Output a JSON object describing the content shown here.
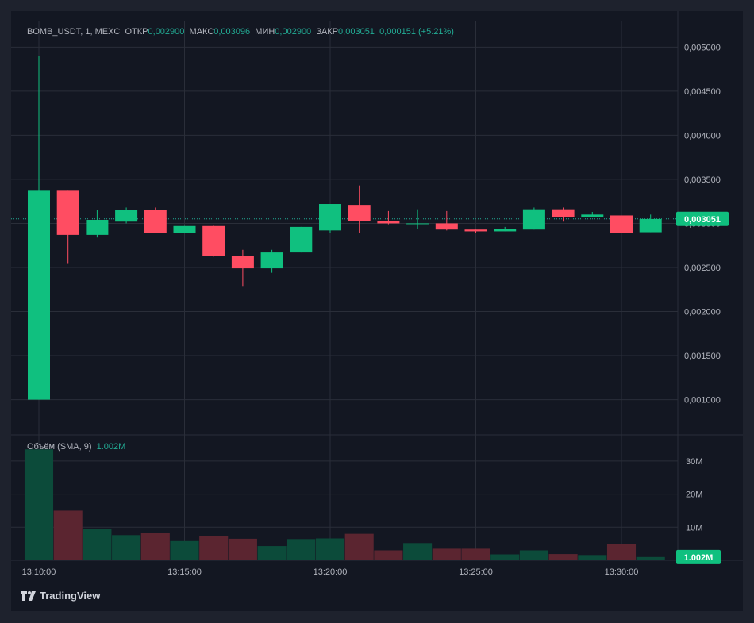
{
  "header": {
    "symbol": "BOMB_USDT, 1, MEXC",
    "open_label": "ОТКР",
    "open_value": "0,002900",
    "high_label": "МАКС",
    "high_value": "0,003096",
    "low_label": "МИН",
    "low_value": "0,002900",
    "close_label": "ЗАКР",
    "close_value": "0,003051",
    "change": "0,000151 (+5.21%)"
  },
  "volume_legend": {
    "label": "Объём (SMA, 9)",
    "value": "1.002M"
  },
  "brand": "TradingView",
  "colors": {
    "up": "#22ab94",
    "down": "#f7525f",
    "up_bright": "#10c07f",
    "down_bright": "#ff4d62",
    "vol_up": "#0c4b3a",
    "vol_down": "#5b2530",
    "background": "#131722",
    "grid": "#2a2e39"
  },
  "chart_data": {
    "type": "candlestick",
    "price_axis": {
      "ticks": [
        "0,005000",
        "0,004500",
        "0,004000",
        "0,003500",
        "0,003000",
        "0,002500",
        "0,002000",
        "0,001500",
        "0,001000"
      ],
      "tick_values": [
        0.005,
        0.0045,
        0.004,
        0.0035,
        0.003,
        0.0025,
        0.002,
        0.0015,
        0.001
      ],
      "range": [
        0.0006,
        0.0053
      ],
      "last_price_label": "0,003051",
      "last_price": 0.003051
    },
    "volume_axis": {
      "ticks": [
        "30M",
        "20M",
        "10M"
      ],
      "tick_values": [
        30,
        20,
        10
      ],
      "range": [
        0,
        35
      ],
      "last_volume_label": "1.002M",
      "last_volume": 1.002
    },
    "time_axis": {
      "ticks": [
        "13:10:00",
        "13:15:00",
        "13:20:00",
        "13:25:00",
        "13:30:00"
      ],
      "tick_index": [
        0,
        5,
        10,
        15,
        20
      ]
    },
    "candles": [
      {
        "t": "13:10",
        "o": 0.001,
        "h": 0.0049,
        "l": 0.001,
        "c": 0.00337
      },
      {
        "t": "13:11",
        "o": 0.00337,
        "h": 0.00337,
        "l": 0.00254,
        "c": 0.00287
      },
      {
        "t": "13:12",
        "o": 0.00287,
        "h": 0.00315,
        "l": 0.00284,
        "c": 0.00304
      },
      {
        "t": "13:13",
        "o": 0.00302,
        "h": 0.00318,
        "l": 0.003,
        "c": 0.00315
      },
      {
        "t": "13:14",
        "o": 0.00315,
        "h": 0.00318,
        "l": 0.00289,
        "c": 0.00289
      },
      {
        "t": "13:15",
        "o": 0.00289,
        "h": 0.00297,
        "l": 0.00289,
        "c": 0.00297
      },
      {
        "t": "13:16",
        "o": 0.00297,
        "h": 0.00298,
        "l": 0.00262,
        "c": 0.00263
      },
      {
        "t": "13:17",
        "o": 0.00263,
        "h": 0.0027,
        "l": 0.00229,
        "c": 0.00249
      },
      {
        "t": "13:18",
        "o": 0.00249,
        "h": 0.0027,
        "l": 0.00244,
        "c": 0.00267
      },
      {
        "t": "13:19",
        "o": 0.00267,
        "h": 0.00296,
        "l": 0.00267,
        "c": 0.00296
      },
      {
        "t": "13:20",
        "o": 0.00292,
        "h": 0.00322,
        "l": 0.00289,
        "c": 0.00322
      },
      {
        "t": "13:21",
        "o": 0.00321,
        "h": 0.00343,
        "l": 0.00289,
        "c": 0.00303
      },
      {
        "t": "13:22",
        "o": 0.00303,
        "h": 0.00314,
        "l": 0.00299,
        "c": 0.003
      },
      {
        "t": "13:23",
        "o": 0.003,
        "h": 0.00316,
        "l": 0.00294,
        "c": 0.003
      },
      {
        "t": "13:24",
        "o": 0.003,
        "h": 0.00314,
        "l": 0.00292,
        "c": 0.00293
      },
      {
        "t": "13:25",
        "o": 0.00293,
        "h": 0.00293,
        "l": 0.00289,
        "c": 0.00291
      },
      {
        "t": "13:26",
        "o": 0.00291,
        "h": 0.00296,
        "l": 0.00291,
        "c": 0.00294
      },
      {
        "t": "13:27",
        "o": 0.00293,
        "h": 0.00318,
        "l": 0.00293,
        "c": 0.00316
      },
      {
        "t": "13:28",
        "o": 0.00316,
        "h": 0.00318,
        "l": 0.00302,
        "c": 0.00307
      },
      {
        "t": "13:29",
        "o": 0.00307,
        "h": 0.00313,
        "l": 0.00307,
        "c": 0.0031
      },
      {
        "t": "13:30",
        "o": 0.00309,
        "h": 0.00309,
        "l": 0.00289,
        "c": 0.00289
      },
      {
        "t": "13:31",
        "o": 0.0029,
        "h": 0.0031,
        "l": 0.0029,
        "c": 0.00305
      }
    ],
    "volumes": [
      33.5,
      15.0,
      9.5,
      7.6,
      8.3,
      5.8,
      7.3,
      6.5,
      4.3,
      6.4,
      6.6,
      8.0,
      3.0,
      5.2,
      3.5,
      3.5,
      1.8,
      3.0,
      1.9,
      1.6,
      4.8,
      1.0
    ]
  }
}
